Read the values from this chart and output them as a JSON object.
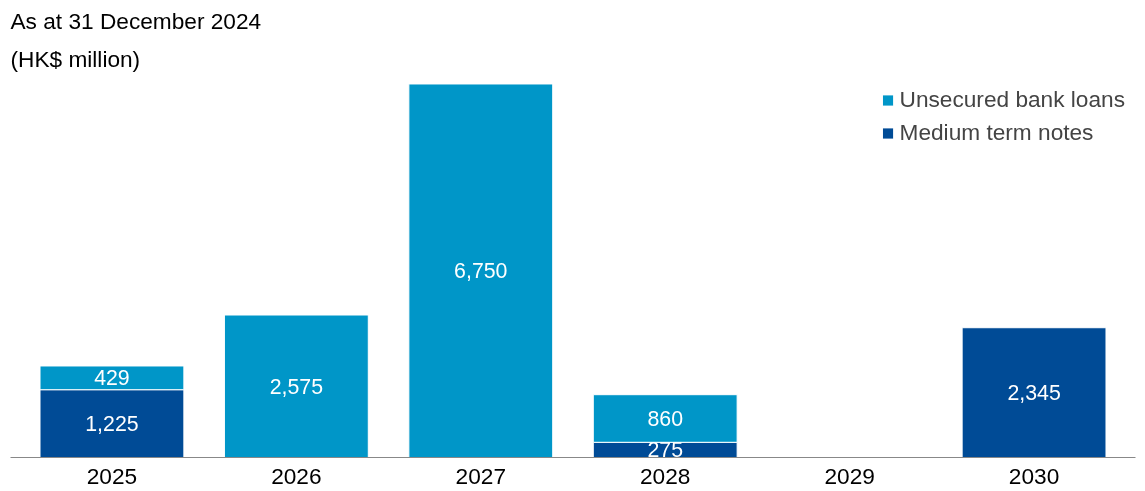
{
  "chart_data": {
    "type": "bar",
    "title": "As at 31 December 2024",
    "subtitle": "(HK$ million)",
    "categories": [
      "2025",
      "2026",
      "2027",
      "2028",
      "2029",
      "2030"
    ],
    "stacked": true,
    "legend": "top right",
    "grid": false,
    "series": [
      {
        "name": "Unsecured bank loans",
        "color": "#0096c8",
        "values": [
          429,
          2575,
          6750,
          860,
          null,
          null
        ],
        "value_labels": [
          "429",
          "2,575",
          "6,750",
          "860",
          null,
          null
        ]
      },
      {
        "name": "Medium term notes",
        "color": "#004b96",
        "values": [
          1225,
          null,
          null,
          275,
          null,
          2345
        ],
        "value_labels": [
          "1,225",
          null,
          null,
          "275",
          null,
          "2,345"
        ]
      }
    ]
  }
}
